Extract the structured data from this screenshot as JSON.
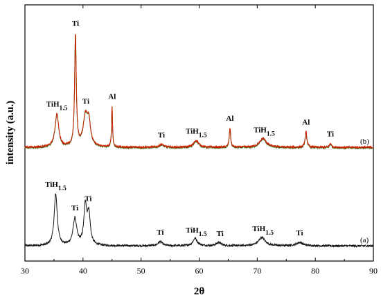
{
  "chart_data": {
    "type": "line",
    "xlabel": "2θ",
    "ylabel": "intensity (a.u.)",
    "xlim": [
      30,
      90
    ],
    "x_ticks": [
      "30",
      "40",
      "50",
      "60",
      "70",
      "80",
      "90"
    ],
    "grid": false,
    "colors": {
      "a": "#111111",
      "b": "#cc2200",
      "b_shadow": "#2a7a20"
    },
    "series": [
      {
        "name": "(a)",
        "baseline": 0.04,
        "noise": 0.012,
        "peaks": [
          {
            "x": 35.3,
            "h": 0.62,
            "w": 0.32
          },
          {
            "x": 38.6,
            "h": 0.32,
            "w": 0.38
          },
          {
            "x": 40.4,
            "h": 0.46,
            "w": 0.3
          },
          {
            "x": 41.0,
            "h": 0.36,
            "w": 0.3
          },
          {
            "x": 53.3,
            "h": 0.05,
            "w": 0.45
          },
          {
            "x": 59.3,
            "h": 0.09,
            "w": 0.45
          },
          {
            "x": 63.4,
            "h": 0.04,
            "w": 0.5
          },
          {
            "x": 70.8,
            "h": 0.1,
            "w": 0.7
          },
          {
            "x": 77.3,
            "h": 0.04,
            "w": 0.7
          }
        ]
      },
      {
        "name": "(b)",
        "baseline": 0.02,
        "noise": 0.01,
        "peaks": [
          {
            "x": 35.5,
            "h": 0.34,
            "w": 0.38
          },
          {
            "x": 38.7,
            "h": 1.15,
            "w": 0.17
          },
          {
            "x": 40.4,
            "h": 0.3,
            "w": 0.45
          },
          {
            "x": 41.0,
            "h": 0.24,
            "w": 0.35
          },
          {
            "x": 45.0,
            "h": 0.42,
            "w": 0.1
          },
          {
            "x": 53.5,
            "h": 0.03,
            "w": 0.45
          },
          {
            "x": 59.5,
            "h": 0.07,
            "w": 0.5
          },
          {
            "x": 65.3,
            "h": 0.2,
            "w": 0.14
          },
          {
            "x": 71.0,
            "h": 0.09,
            "w": 0.7
          },
          {
            "x": 78.4,
            "h": 0.16,
            "w": 0.18
          },
          {
            "x": 82.6,
            "h": 0.04,
            "w": 0.2
          }
        ]
      }
    ],
    "annotations": [
      {
        "series": "(b)",
        "x": 35.5,
        "text": "TiH",
        "sub": "1.5"
      },
      {
        "series": "(b)",
        "x": 38.7,
        "text": "Ti",
        "sub": ""
      },
      {
        "series": "(b)",
        "x": 40.5,
        "text": "Ti",
        "sub": ""
      },
      {
        "series": "(b)",
        "x": 45.0,
        "text": "Al",
        "sub": ""
      },
      {
        "series": "(b)",
        "x": 53.5,
        "text": "Ti",
        "sub": ""
      },
      {
        "series": "(b)",
        "x": 59.5,
        "text": "TiH",
        "sub": "1.5"
      },
      {
        "series": "(b)",
        "x": 65.3,
        "text": "Al",
        "sub": ""
      },
      {
        "series": "(b)",
        "x": 71.2,
        "text": "TiH",
        "sub": "1.5"
      },
      {
        "series": "(b)",
        "x": 78.4,
        "text": "Al",
        "sub": ""
      },
      {
        "series": "(b)",
        "x": 82.6,
        "text": "Ti",
        "sub": ""
      },
      {
        "series": "(a)",
        "x": 35.3,
        "text": "TiH",
        "sub": "1.5"
      },
      {
        "series": "(a)",
        "x": 38.6,
        "text": "Ti",
        "sub": ""
      },
      {
        "series": "(a)",
        "x": 40.9,
        "text": "Ti",
        "sub": ""
      },
      {
        "series": "(a)",
        "x": 53.3,
        "text": "Ti",
        "sub": ""
      },
      {
        "series": "(a)",
        "x": 59.5,
        "text": "TiH",
        "sub": "1.5"
      },
      {
        "series": "(a)",
        "x": 63.6,
        "text": "Ti",
        "sub": ""
      },
      {
        "series": "(a)",
        "x": 71.0,
        "text": "TiH",
        "sub": "1.5"
      },
      {
        "series": "(a)",
        "x": 77.3,
        "text": "Ti",
        "sub": ""
      }
    ]
  }
}
